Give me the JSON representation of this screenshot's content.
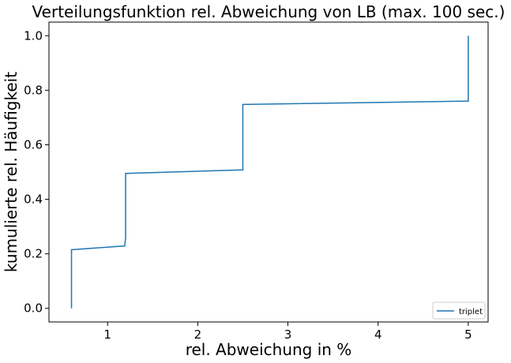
{
  "chart_data": {
    "type": "line",
    "title": "Verteilungsfunktion rel. Abweichung von LB (max. 100 sec.)",
    "xlabel": "rel. Abweichung in %",
    "ylabel": "kumulierte rel. Häufigkeit",
    "xlim": [
      0.35,
      5.22
    ],
    "ylim": [
      -0.05,
      1.05
    ],
    "x_ticks": [
      1,
      2,
      3,
      4,
      5
    ],
    "y_ticks": [
      0.0,
      0.2,
      0.4,
      0.6,
      0.8,
      1.0
    ],
    "x_tick_labels": [
      "1",
      "2",
      "3",
      "4",
      "5"
    ],
    "y_tick_labels": [
      "0.0",
      "0.2",
      "0.4",
      "0.6",
      "0.8",
      "1.0"
    ],
    "grid": false,
    "legend_position": "bottom-right",
    "series": [
      {
        "name": "triplet",
        "color": "#1f77b4",
        "x": [
          0.6,
          0.6,
          1.19,
          1.2,
          1.2,
          2.5,
          2.5,
          4.99,
          5.0,
          5.0
        ],
        "y": [
          0.0,
          0.215,
          0.229,
          0.26,
          0.495,
          0.508,
          0.748,
          0.76,
          0.76,
          1.0
        ]
      }
    ]
  }
}
